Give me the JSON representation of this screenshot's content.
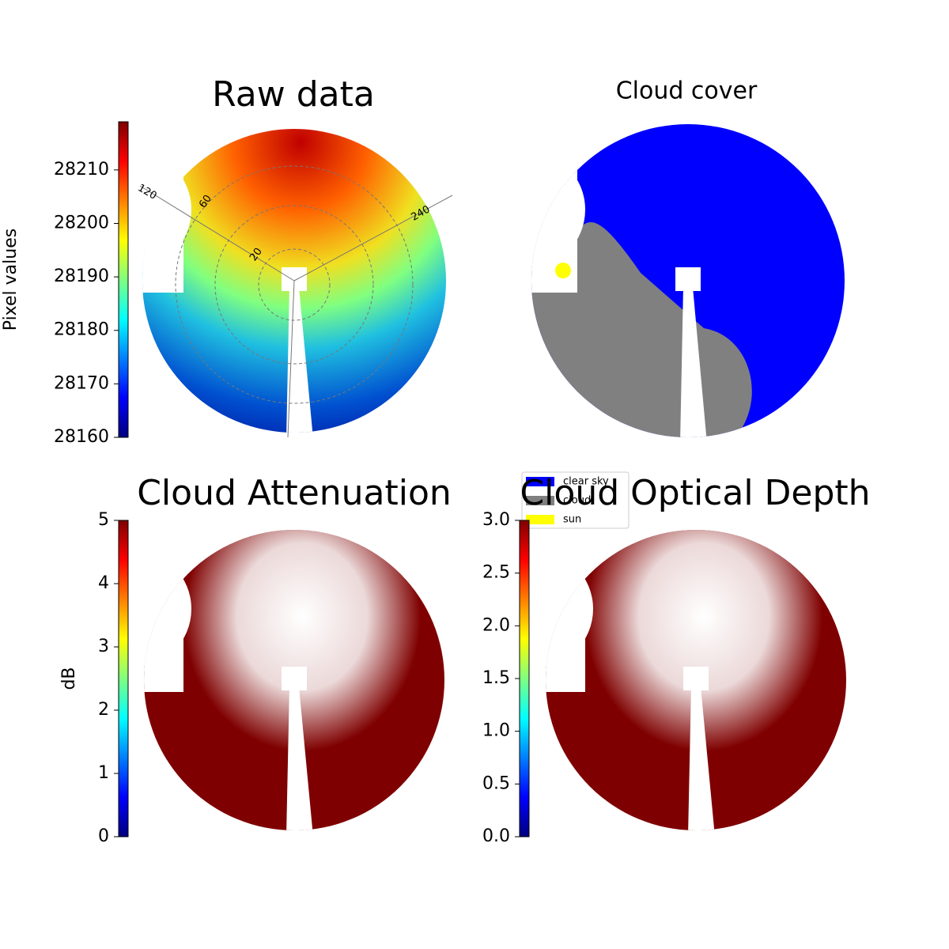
{
  "chart_data": [
    {
      "type": "image",
      "title": "Raw data",
      "colorbar_label": "Pixel values",
      "colormap": "jet",
      "ylim": [
        28160,
        28219
      ],
      "yticks": [
        28160,
        28170,
        28180,
        28190,
        28200,
        28210
      ],
      "annotations": [
        "120",
        "60",
        "20",
        "240"
      ]
    },
    {
      "type": "image",
      "title": "Cloud cover",
      "legend": "lower left",
      "series": [
        {
          "name": "clear sky",
          "color": "#0000ff"
        },
        {
          "name": "cloud",
          "color": "#808080"
        },
        {
          "name": "sun",
          "color": "#ffff00"
        }
      ]
    },
    {
      "type": "image",
      "title": "Cloud Attenuation",
      "colorbar_label": "dB",
      "colormap": "jet",
      "ylim": [
        0,
        5
      ],
      "yticks": [
        0,
        1,
        2,
        3,
        4,
        5
      ]
    },
    {
      "type": "image",
      "title": "Cloud Optical Depth",
      "colormap": "jet",
      "ylim": [
        0,
        3
      ],
      "yticks": [
        {
          "value": 0,
          "label": "0.0"
        },
        0.5,
        {
          "value": 1,
          "label": "1.0"
        },
        1.5,
        {
          "value": 2,
          "label": "2.0"
        },
        2.5,
        {
          "value": 3,
          "label": "3.0"
        }
      ]
    }
  ]
}
